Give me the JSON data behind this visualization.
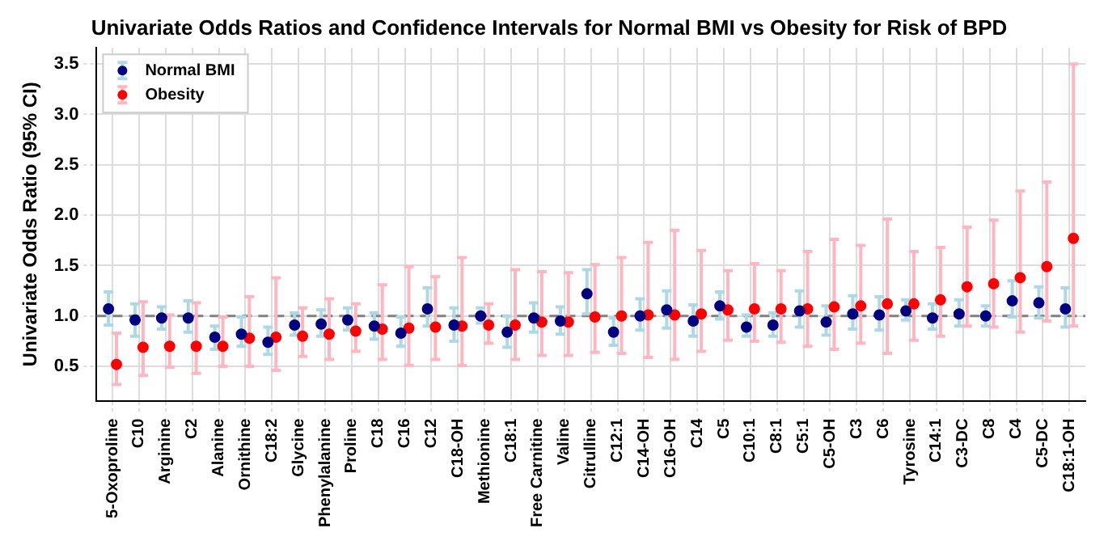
{
  "chart_data": {
    "type": "scatter",
    "title": "Univariate Odds Ratios and Confidence Intervals for Normal BMI vs Obesity for Risk of BPD",
    "ylabel": "Univariate Odds Ratio (95% CI)",
    "categories": [
      "5-Oxoproline",
      "C10",
      "Arginine",
      "C2",
      "Alanine",
      "Ornithine",
      "C18:2",
      "Glycine",
      "Phenylalanine",
      "Proline",
      "C18",
      "C16",
      "C12",
      "C18-OH",
      "Methionine",
      "C18:1",
      "Free Carnitine",
      "Valine",
      "Citrulline",
      "C12:1",
      "C14-OH",
      "C16-OH",
      "C14",
      "C5",
      "C10:1",
      "C8:1",
      "C5:1",
      "C5-OH",
      "C3",
      "C6",
      "Tyrosine",
      "C14:1",
      "C3-DC",
      "C8",
      "C4",
      "C5-DC",
      "C18:1-OH"
    ],
    "series": [
      {
        "name": "Normal BMI",
        "color": "#000080",
        "values": [
          1.07,
          0.96,
          0.98,
          0.98,
          0.79,
          0.82,
          0.74,
          0.91,
          0.92,
          0.96,
          0.9,
          0.83,
          1.07,
          0.91,
          1.0,
          0.84,
          0.98,
          0.95,
          1.22,
          0.84,
          1.0,
          1.06,
          0.95,
          1.1,
          0.89,
          0.91,
          1.05,
          0.94,
          1.02,
          1.01,
          1.05,
          0.98,
          1.02,
          1.0,
          1.15,
          1.13,
          1.07
        ],
        "errors": [
          [
            0.91,
            1.24
          ],
          [
            0.8,
            1.12
          ],
          [
            0.87,
            1.09
          ],
          [
            0.84,
            1.15
          ],
          [
            0.67,
            0.9
          ],
          [
            0.7,
            0.99
          ],
          [
            0.62,
            0.89
          ],
          [
            0.81,
            1.03
          ],
          [
            0.8,
            1.06
          ],
          [
            0.86,
            1.08
          ],
          [
            0.77,
            1.03
          ],
          [
            0.7,
            0.99
          ],
          [
            0.9,
            1.28
          ],
          [
            0.75,
            1.08
          ],
          [
            0.93,
            1.08
          ],
          [
            0.69,
            1.0
          ],
          [
            0.84,
            1.13
          ],
          [
            0.82,
            1.09
          ],
          [
            1.02,
            1.46
          ],
          [
            0.71,
            0.98
          ],
          [
            0.86,
            1.17
          ],
          [
            0.88,
            1.25
          ],
          [
            0.8,
            1.11
          ],
          [
            0.97,
            1.24
          ],
          [
            0.8,
            1.01
          ],
          [
            0.8,
            1.03
          ],
          [
            0.89,
            1.25
          ],
          [
            0.81,
            1.1
          ],
          [
            0.87,
            1.2
          ],
          [
            0.86,
            1.19
          ],
          [
            0.96,
            1.16
          ],
          [
            0.87,
            1.12
          ],
          [
            0.9,
            1.16
          ],
          [
            0.9,
            1.1
          ],
          [
            0.99,
            1.35
          ],
          [
            0.98,
            1.29
          ],
          [
            0.89,
            1.28
          ]
        ]
      },
      {
        "name": "Obesity",
        "color": "#ff0000",
        "values": [
          0.52,
          0.69,
          0.7,
          0.7,
          0.7,
          0.78,
          0.79,
          0.8,
          0.82,
          0.85,
          0.87,
          0.88,
          0.89,
          0.9,
          0.91,
          0.91,
          0.94,
          0.94,
          0.99,
          1.0,
          1.01,
          1.01,
          1.02,
          1.06,
          1.07,
          1.07,
          1.07,
          1.09,
          1.1,
          1.12,
          1.12,
          1.16,
          1.29,
          1.32,
          1.38,
          1.49,
          1.77
        ],
        "errors": [
          [
            0.32,
            0.83
          ],
          [
            0.41,
            1.14
          ],
          [
            0.49,
            1.01
          ],
          [
            0.43,
            1.13
          ],
          [
            0.5,
            0.99
          ],
          [
            0.5,
            1.19
          ],
          [
            0.46,
            1.38
          ],
          [
            0.6,
            1.08
          ],
          [
            0.57,
            1.17
          ],
          [
            0.65,
            1.12
          ],
          [
            0.57,
            1.31
          ],
          [
            0.51,
            1.49
          ],
          [
            0.57,
            1.39
          ],
          [
            0.51,
            1.58
          ],
          [
            0.73,
            1.12
          ],
          [
            0.57,
            1.46
          ],
          [
            0.61,
            1.44
          ],
          [
            0.61,
            1.43
          ],
          [
            0.64,
            1.51
          ],
          [
            0.63,
            1.58
          ],
          [
            0.59,
            1.73
          ],
          [
            0.57,
            1.85
          ],
          [
            0.65,
            1.65
          ],
          [
            0.76,
            1.45
          ],
          [
            0.75,
            1.52
          ],
          [
            0.74,
            1.45
          ],
          [
            0.7,
            1.64
          ],
          [
            0.67,
            1.76
          ],
          [
            0.73,
            1.7
          ],
          [
            0.63,
            1.96
          ],
          [
            0.76,
            1.64
          ],
          [
            0.8,
            1.68
          ],
          [
            0.9,
            1.88
          ],
          [
            0.89,
            1.95
          ],
          [
            0.84,
            2.24
          ],
          [
            0.95,
            2.33
          ],
          [
            0.9,
            3.5
          ]
        ]
      }
    ],
    "ylim": [
      0.16,
      3.66
    ],
    "yticks": [
      0.5,
      {
        "value": 1,
        "label": "1.0"
      },
      1.5,
      {
        "value": 2,
        "label": "2.0"
      },
      2.5,
      {
        "value": 3,
        "label": "3.0"
      },
      3.5
    ],
    "ref_lines": [
      {
        "axis": "y",
        "value": 1,
        "color": "#808080",
        "line_style": "dashed"
      }
    ],
    "grid": true,
    "legend": "top left",
    "marker": "circle"
  }
}
